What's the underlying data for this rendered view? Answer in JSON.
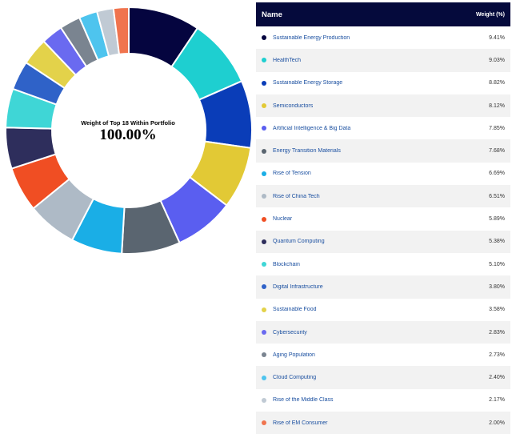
{
  "center": {
    "title": "Weight of Top 18 Within Portfolio",
    "value": "100.00%"
  },
  "table": {
    "header_name": "Name",
    "header_weight": "Weight (%)"
  },
  "chart_data": {
    "type": "pie",
    "donut": true,
    "categories": [
      "Sustainable Energy Production",
      "HealthTech",
      "Sustainable Energy Storage",
      "Semiconductors",
      "Artificial Intelligence & Big Data",
      "Energy Transition Materials",
      "Rise of Tension",
      "Rise of China Tech",
      "Nuclear",
      "Quantum Computing",
      "Blockchain",
      "Digital Infrastructure",
      "Sustainable Food",
      "Cybersecurity",
      "Aging Population",
      "Cloud Computing",
      "Rise of the Middle Class",
      "Rise of EM Consumer"
    ],
    "values": [
      9.41,
      9.03,
      8.82,
      8.12,
      7.85,
      7.68,
      6.69,
      6.51,
      5.89,
      5.38,
      5.1,
      3.8,
      3.58,
      2.83,
      2.73,
      2.4,
      2.17,
      2.0
    ],
    "labels": [
      "9.41%",
      "9.03%",
      "8.82%",
      "8.12%",
      "7.85%",
      "7.68%",
      "6.69%",
      "6.51%",
      "5.89%",
      "5.38%",
      "5.10%",
      "3.80%",
      "3.58%",
      "2.83%",
      "2.73%",
      "2.40%",
      "2.17%",
      "2.00%"
    ],
    "colors": [
      "#05053f",
      "#1ecfd0",
      "#0a3db8",
      "#e2c935",
      "#5a5ef0",
      "#5a6570",
      "#1aaee6",
      "#aebac6",
      "#f04e23",
      "#2e2e5c",
      "#3fd6d6",
      "#2f62c8",
      "#e3d24a",
      "#6a6af0",
      "#7a8490",
      "#4ec4ee",
      "#c0cad4",
      "#f0744e"
    ]
  }
}
